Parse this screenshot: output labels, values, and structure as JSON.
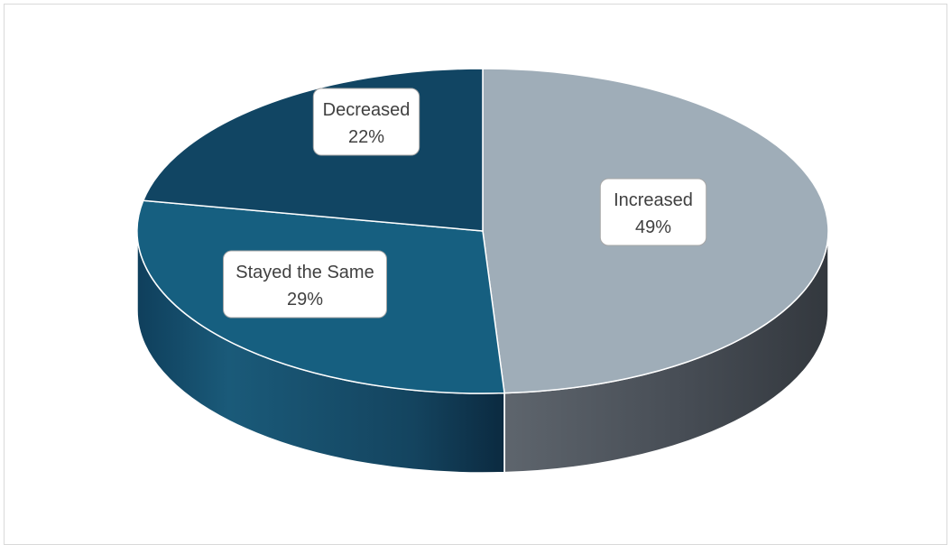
{
  "chart_data": {
    "type": "pie",
    "style": "3d",
    "legend": "none",
    "data_labels": "category and percentage",
    "slices": [
      {
        "label": "Increased",
        "value": 49,
        "display": "49%",
        "color": "#9fadb8",
        "side_color": "#4a5058"
      },
      {
        "label": "Stayed the Same",
        "value": 29,
        "display": "29%",
        "color": "#165f80",
        "side_color": "#123f57"
      },
      {
        "label": "Decreased",
        "value": 22,
        "display": "22%",
        "color": "#114563",
        "side_color": "#0e3248"
      }
    ]
  }
}
